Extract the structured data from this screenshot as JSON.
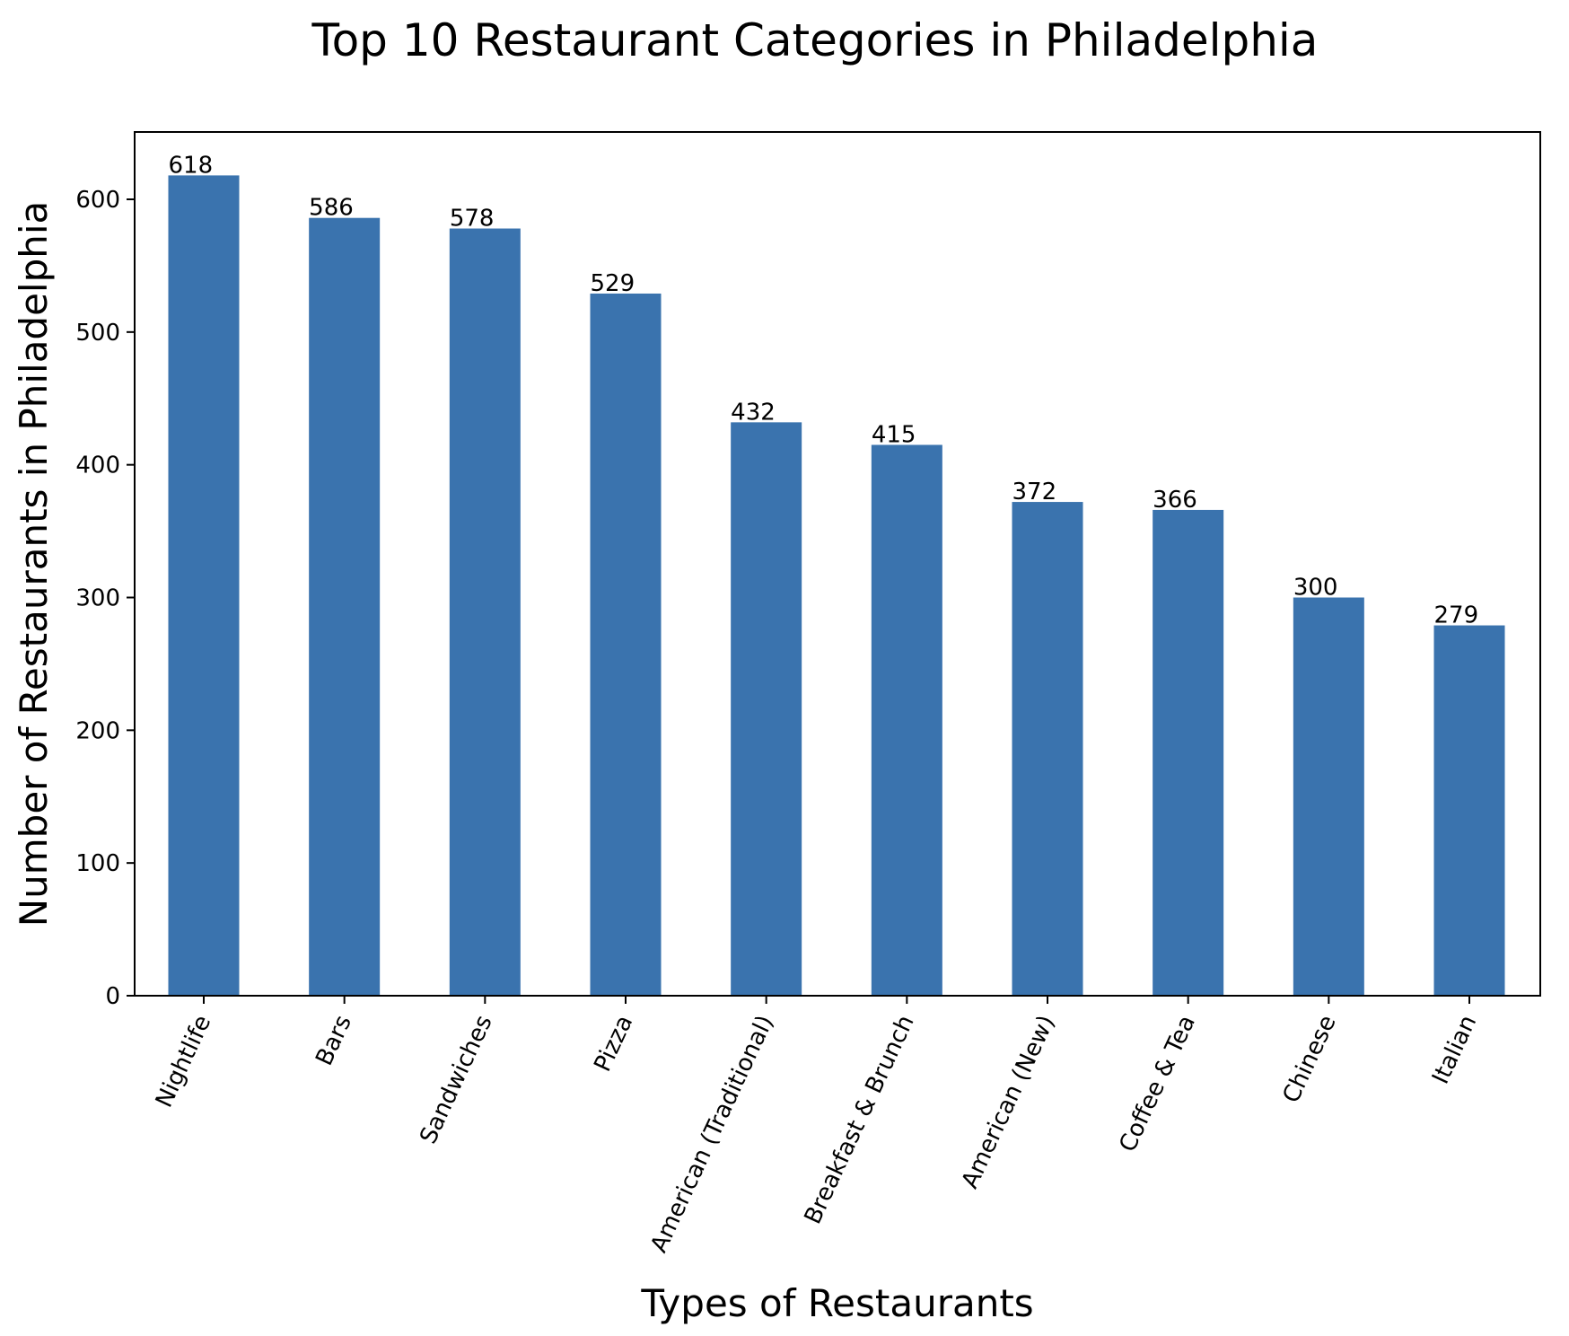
{
  "chart_data": {
    "type": "bar",
    "title": "Top 10 Restaurant Categories in Philadelphia",
    "xlabel": "Types of Restaurants",
    "ylabel": "Number of Restaurants in Philadelphia",
    "categories": [
      "Nightlife",
      "Bars",
      "Sandwiches",
      "Pizza",
      "American (Traditional)",
      "Breakfast & Brunch",
      "American (New)",
      "Coffee & Tea",
      "Chinese",
      "Italian"
    ],
    "values": [
      618,
      586,
      578,
      529,
      432,
      415,
      372,
      366,
      300,
      279
    ],
    "data_labels": [
      "618",
      "586",
      "578",
      "529",
      "432",
      "415",
      "372",
      "366",
      "300",
      "279"
    ],
    "ylim": [
      0,
      650
    ],
    "yticks": [
      0,
      100,
      200,
      300,
      400,
      500,
      600
    ],
    "ytick_labels": [
      "0",
      "100",
      "200",
      "300",
      "400",
      "500",
      "600"
    ],
    "xtick_rotation_deg": 65,
    "grid": false,
    "legend": false,
    "colors": {
      "bar": "#3a73ae",
      "axis": "#000000",
      "background": "#ffffff"
    }
  }
}
